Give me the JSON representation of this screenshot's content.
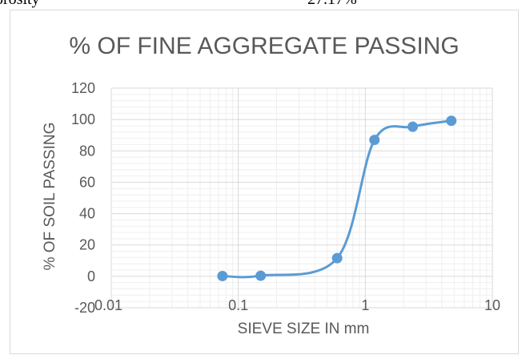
{
  "document": {
    "label": "orosity",
    "value": "27.17%"
  },
  "chart_data": {
    "type": "scatter",
    "title": "% OF FINE AGGREGATE PASSING",
    "xlabel": "SIEVE SIZE IN mm",
    "ylabel": "% OF SOIL PASSING",
    "x_scale": "log",
    "xlim": [
      0.01,
      10
    ],
    "ylim": [
      -20,
      120
    ],
    "y_major_step": 20,
    "grid": true,
    "legend": "none",
    "smooth_line": true,
    "series_color": "#5b9bd5",
    "x_ticks": [
      "0.01",
      "0.1",
      "1",
      "10"
    ],
    "y_ticks": [
      "-20",
      "0",
      "20",
      "40",
      "60",
      "80",
      "100",
      "120"
    ],
    "x": [
      0.075,
      0.15,
      0.6,
      1.18,
      2.36,
      4.75
    ],
    "values": [
      0.2,
      0.4,
      11.6,
      87.0,
      95.4,
      99.2
    ]
  }
}
